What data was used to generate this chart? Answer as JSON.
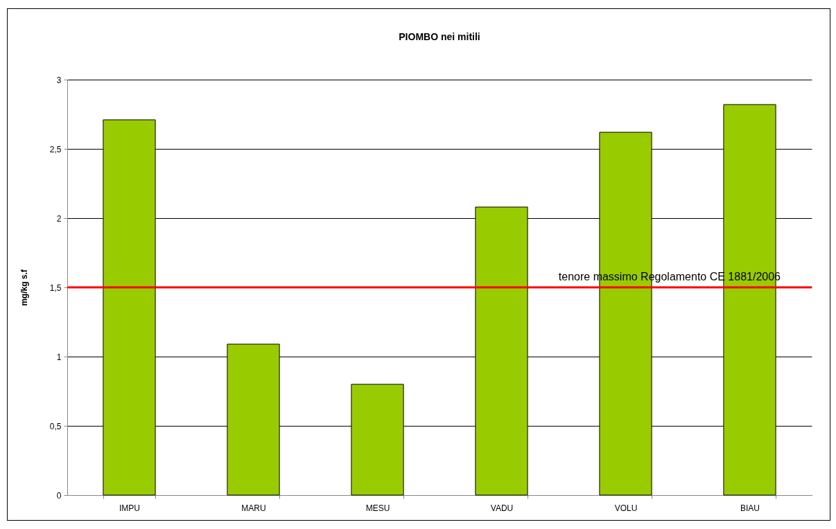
{
  "chart_data": {
    "type": "bar",
    "title": "PIOMBO nei mitili",
    "ylabel": "mg/kg s.f",
    "categories": [
      "IMPU",
      "MARU",
      "MESU",
      "VADU",
      "VOLU",
      "BIAU"
    ],
    "values": [
      2.71,
      1.09,
      0.8,
      2.08,
      2.62,
      2.82
    ],
    "color": "#99cc00",
    "ylim": [
      0,
      3
    ],
    "yticks": [
      0,
      {
        "value": 0.5,
        "label": "0,5"
      },
      1,
      {
        "value": 1.5,
        "label": "1,5"
      },
      2,
      {
        "value": 2.5,
        "label": "2,5"
      },
      3
    ],
    "grid": "y",
    "ref_lines": [
      {
        "axis": "y",
        "value": 1.5,
        "label": "tenore massimo Regolamento CE 1881/2006",
        "color": "#ff0000"
      }
    ]
  }
}
